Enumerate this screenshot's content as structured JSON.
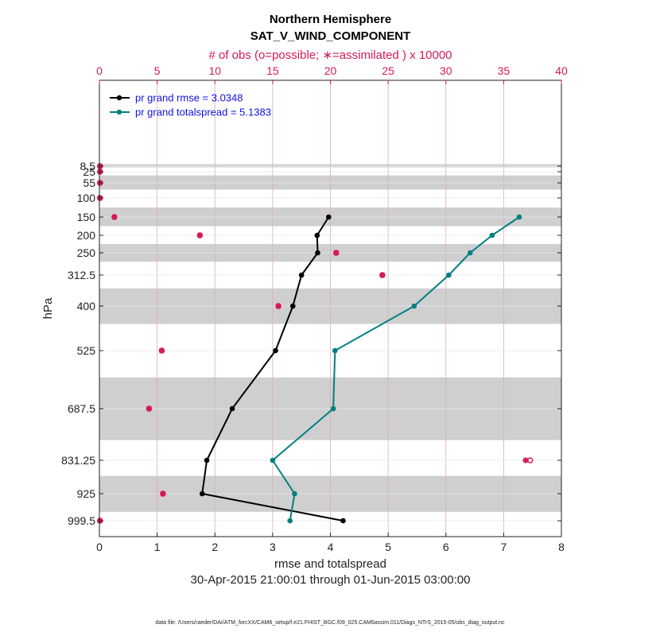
{
  "chart_data": {
    "type": "line",
    "title": "Northern Hemisphere",
    "subtitle": "SAT_V_WIND_COMPONENT",
    "top_axis_label": "# of obs (o=possible; ∗=assimilated ) x 10000",
    "xlabel": "rmse and totalspread",
    "ylabel": "hPa",
    "date_range": "30-Apr-2015 21:00:01 through 01-Jun-2015 03:00:00",
    "footnote": "data file: /Users/raeder/DAI/ATM_forcXX/CAM6_setup/f.e21.FHIST_BGC.f09_025.CAM6assim.011/Diags_NTrS_2015-05/obs_diag_output.nc",
    "xlim": [
      0,
      8
    ],
    "x_ticks": [
      "0",
      "1",
      "2",
      "3",
      "4",
      "5",
      "6",
      "7",
      "8"
    ],
    "top_xlim": [
      0,
      40
    ],
    "top_ticks": [
      "0",
      "5",
      "10",
      "15",
      "20",
      "25",
      "30",
      "35",
      "40"
    ],
    "levels": [
      8.5,
      25,
      55,
      100,
      150,
      200,
      250,
      312.5,
      400,
      525,
      687.5,
      831.25,
      925,
      999.5
    ],
    "level_labels": [
      "8.5",
      "25",
      "55",
      "100",
      "150",
      "200",
      "250",
      "312.5",
      "400",
      "525",
      "687.5",
      "831.25",
      "925",
      "999.5"
    ],
    "shaded_bands_hPa": [
      [
        5,
        12
      ],
      [
        35,
        75
      ],
      [
        125,
        175
      ],
      [
        225,
        275
      ],
      [
        350,
        450
      ],
      [
        600,
        775
      ],
      [
        875,
        975
      ]
    ],
    "series": [
      {
        "name": "pr grand rmse = 3.0348",
        "color": "#000000",
        "levels": [
          150,
          200,
          250,
          312.5,
          400,
          525,
          687.5,
          831.25,
          925,
          999.5
        ],
        "values": [
          3.97,
          3.77,
          3.78,
          3.5,
          3.35,
          3.05,
          2.3,
          1.86,
          1.78,
          4.22
        ]
      },
      {
        "name": "pr grand totalspread = 5.1383",
        "color": "#008080",
        "levels": [
          150,
          200,
          250,
          312.5,
          400,
          525,
          687.5,
          831.25,
          925,
          999.5
        ],
        "values": [
          7.27,
          6.8,
          6.42,
          6.05,
          5.45,
          4.08,
          4.05,
          3.0,
          3.38,
          3.3
        ]
      }
    ],
    "obs_counts": {
      "color": "#d6195a",
      "levels": [
        8.5,
        25,
        55,
        100,
        150,
        200,
        250,
        312.5,
        400,
        525,
        687.5,
        831.25,
        925,
        999.5
      ],
      "possible": [
        0.05,
        0.05,
        0.05,
        0.05,
        1.3,
        8.7,
        20.5,
        24.5,
        15.5,
        5.4,
        4.3,
        37.3,
        5.5,
        0.05
      ],
      "assimilated": [
        0.05,
        0.05,
        0.05,
        0.05,
        1.3,
        8.7,
        20.5,
        24.5,
        15.5,
        5.4,
        4.3,
        36.9,
        5.5,
        0.05
      ]
    },
    "legend_position": "top-left"
  }
}
